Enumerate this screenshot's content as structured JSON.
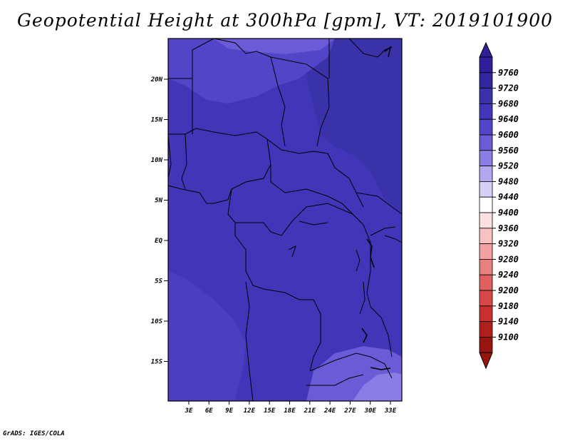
{
  "title": "Geopotential Height at 300hPa [gpm], VT: 2019101900",
  "credit": "GrADS: IGES/COLA",
  "lon_labels": [
    "3E",
    "6E",
    "9E",
    "12E",
    "15E",
    "18E",
    "21E",
    "24E",
    "27E",
    "30E",
    "33E"
  ],
  "lat_labels": [
    "20N",
    "15N",
    "10N",
    "5N",
    "EQ",
    "5S",
    "10S",
    "15S"
  ],
  "colorbar": {
    "levels": [
      "9760",
      "9720",
      "9680",
      "9640",
      "9600",
      "9560",
      "9520",
      "9480",
      "9440",
      "9400",
      "9360",
      "9320",
      "9280",
      "9240",
      "9200",
      "9180",
      "9140",
      "9100"
    ],
    "colors": [
      "#2e1f9a",
      "#32279f",
      "#3a32a8",
      "#4136b8",
      "#5046c7",
      "#6a5bd6",
      "#8a7ee6",
      "#b1a8f0",
      "#d6d0f8",
      "#ffffff",
      "#fde0e0",
      "#f9c2c2",
      "#f2a0a0",
      "#e98080",
      "#e06060",
      "#d84848",
      "#c83030",
      "#b01e1e",
      "#98140f"
    ],
    "top_color": "#2e1f9a",
    "bottom_color": "#98140f"
  },
  "map_colors": {
    "base": "#4136b8",
    "lighter": "#5046c7",
    "dark": "#3a32a8",
    "light_patch": "#6a5bd6",
    "lightest_patch": "#8a7ee6",
    "border": "#000000"
  }
}
